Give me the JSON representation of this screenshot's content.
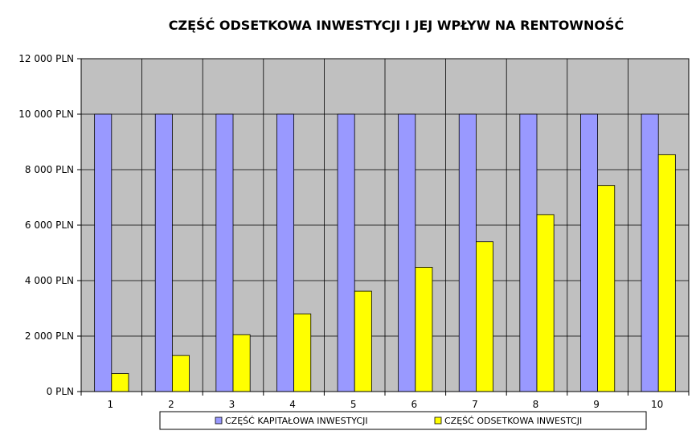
{
  "chart_data": {
    "type": "bar",
    "title": "CZĘŚĆ ODSETKOWA INWESTYCJI I JEJ WPŁYW NA RENTOWNOŚĆ",
    "xlabel": "",
    "ylabel": "",
    "categories": [
      "1",
      "2",
      "3",
      "4",
      "5",
      "6",
      "7",
      "8",
      "9",
      "10"
    ],
    "series": [
      {
        "name": "CZĘŚĆ KAPITAŁOWA INWESTYCJI",
        "color": "#9999ff",
        "values": [
          10000,
          10000,
          10000,
          10000,
          10000,
          10000,
          10000,
          10000,
          10000,
          10000
        ]
      },
      {
        "name": "CZĘŚĆ ODSETKOWA INWESTCJI",
        "color": "#ffff00",
        "values": [
          650,
          1300,
          2050,
          2800,
          3620,
          4480,
          5400,
          6380,
          7430,
          8540
        ]
      }
    ],
    "ylim": [
      0,
      12000
    ],
    "yticks": [
      "0 PLN",
      "2 000 PLN",
      "4 000 PLN",
      "6 000 PLN",
      "8 000 PLN",
      "10 000 PLN",
      "12 000 PLN"
    ],
    "ytick_values": [
      0,
      2000,
      4000,
      6000,
      8000,
      10000,
      12000
    ],
    "grid": true,
    "plot_background": "#c0c0c0",
    "legend_position": "bottom"
  }
}
